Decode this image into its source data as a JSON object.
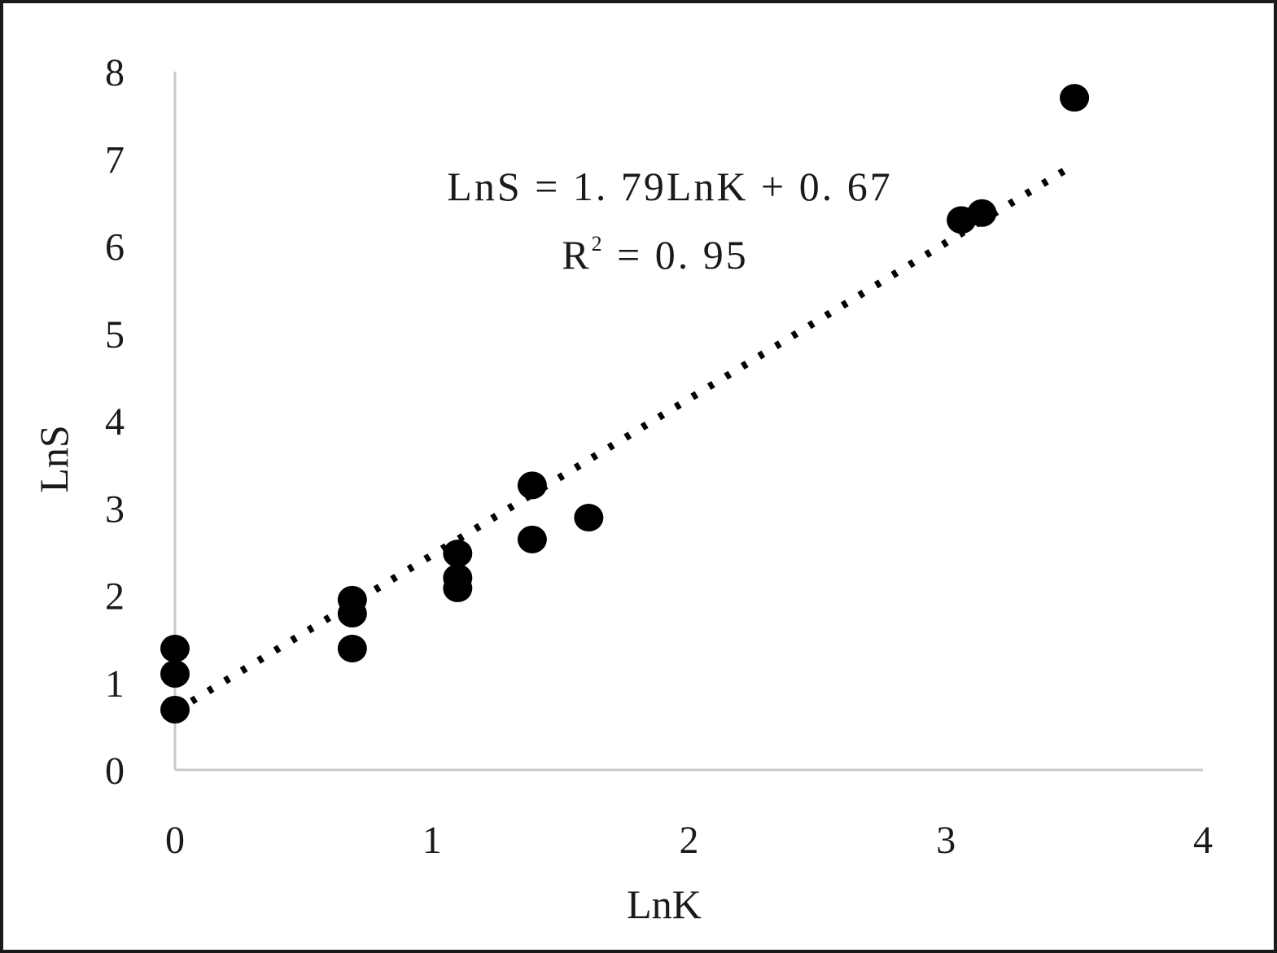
{
  "chart_data": {
    "type": "scatter",
    "xlabel": "LnK",
    "ylabel": "LnS",
    "xlim": [
      0,
      4
    ],
    "ylim": [
      0,
      8
    ],
    "x_ticks": [
      "0",
      "1",
      "2",
      "3",
      "4"
    ],
    "y_ticks": [
      "0",
      "1",
      "2",
      "3",
      "4",
      "5",
      "6",
      "7",
      "8"
    ],
    "grid": false,
    "legend": "none",
    "series": [
      {
        "points": [
          [
            0,
            0.69
          ],
          [
            0,
            1.1
          ],
          [
            0,
            1.39
          ],
          [
            0.69,
            1.39
          ],
          [
            0.69,
            1.79
          ],
          [
            0.69,
            1.95
          ],
          [
            1.1,
            2.08
          ],
          [
            1.1,
            2.2
          ],
          [
            1.1,
            2.48
          ],
          [
            1.39,
            2.64
          ],
          [
            1.39,
            3.26
          ],
          [
            1.61,
            2.89
          ],
          [
            3.06,
            6.3
          ],
          [
            3.14,
            6.38
          ],
          [
            3.5,
            7.7
          ]
        ]
      }
    ],
    "trendline": {
      "type": "linear",
      "slope": 1.79,
      "intercept": 0.67,
      "x_range": [
        0,
        3.47
      ],
      "style": "dotted"
    },
    "annotations": {
      "equation": "LnS = 1. 79LnK + 0. 67",
      "r2_prefix": "R",
      "r2_sup": "2",
      "r2_suffix": " = 0. 95"
    },
    "colors": {
      "points": "#000000",
      "trendline": "#000000",
      "axes": "#c8c8c8",
      "text": "#1a1a1a",
      "frame": "#1a1a1a"
    }
  }
}
